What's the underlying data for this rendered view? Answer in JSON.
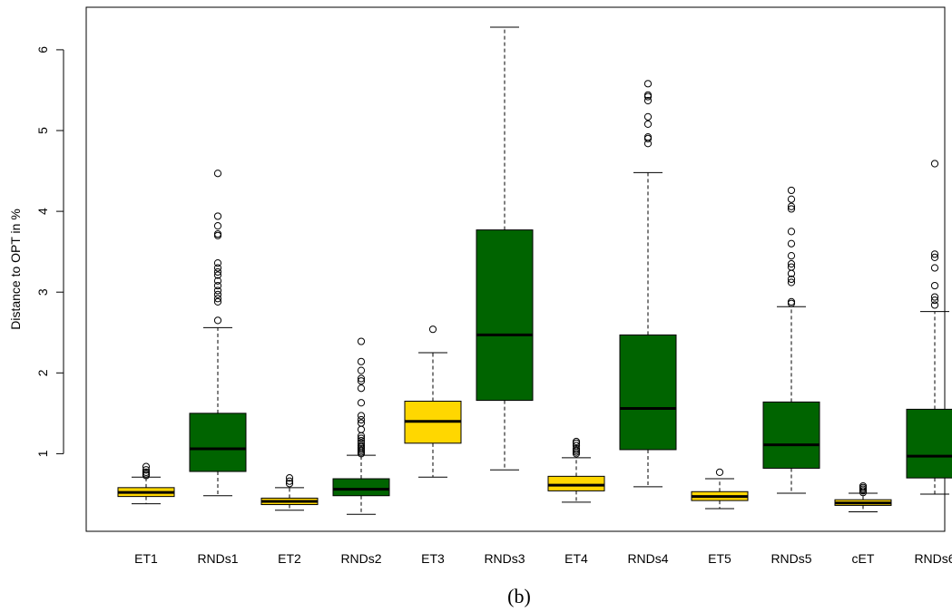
{
  "chart_data": {
    "type": "boxplot",
    "ylabel": "Distance to OPT in %",
    "caption": "(b)",
    "ylim": [
      0.15,
      6.5
    ],
    "yticks": [
      1,
      2,
      3,
      4,
      5,
      6
    ],
    "grid": false,
    "legend": "none",
    "colors": {
      "ET": "#FFD700",
      "RND": "#006400",
      "median": "#000000",
      "outline": "#000000"
    },
    "categories": [
      "ET1",
      "RNDs1",
      "ET2",
      "RNDs2",
      "ET3",
      "RNDs3",
      "ET4",
      "RNDs4",
      "ET5",
      "RNDs5",
      "cET",
      "RNDs6"
    ],
    "boxes": [
      {
        "label": "ET1",
        "group": "ET",
        "whisker_low": 0.38,
        "q1": 0.47,
        "median": 0.52,
        "q3": 0.58,
        "whisker_high": 0.71,
        "outliers": [
          0.73,
          0.75,
          0.77,
          0.8,
          0.84
        ]
      },
      {
        "label": "RNDs1",
        "group": "RND",
        "whisker_low": 0.48,
        "q1": 0.78,
        "median": 1.06,
        "q3": 1.5,
        "whisker_high": 2.56,
        "outliers": [
          2.65,
          2.88,
          2.92,
          2.97,
          3.02,
          3.08,
          3.14,
          3.21,
          3.25,
          3.3,
          3.36,
          3.7,
          3.72,
          3.82,
          3.94,
          4.47
        ]
      },
      {
        "label": "ET2",
        "group": "ET",
        "whisker_low": 0.3,
        "q1": 0.37,
        "median": 0.41,
        "q3": 0.45,
        "whisker_high": 0.58,
        "outliers": [
          0.63,
          0.66,
          0.7
        ]
      },
      {
        "label": "RNDs2",
        "group": "RND",
        "whisker_low": 0.25,
        "q1": 0.48,
        "median": 0.56,
        "q3": 0.69,
        "whisker_high": 0.98,
        "outliers": [
          1.0,
          1.02,
          1.04,
          1.06,
          1.08,
          1.1,
          1.13,
          1.16,
          1.19,
          1.22,
          1.3,
          1.38,
          1.42,
          1.47,
          1.63,
          1.81,
          1.9,
          1.93,
          2.03,
          2.14,
          2.39
        ]
      },
      {
        "label": "ET3",
        "group": "ET",
        "whisker_low": 0.71,
        "q1": 1.13,
        "median": 1.4,
        "q3": 1.65,
        "whisker_high": 2.25,
        "outliers": [
          2.54
        ]
      },
      {
        "label": "RNDs3",
        "group": "RND",
        "whisker_low": 0.8,
        "q1": 1.66,
        "median": 2.47,
        "q3": 3.77,
        "whisker_high": 6.28,
        "outliers": []
      },
      {
        "label": "ET4",
        "group": "ET",
        "whisker_low": 0.4,
        "q1": 0.54,
        "median": 0.61,
        "q3": 0.72,
        "whisker_high": 0.95,
        "outliers": [
          1.0,
          1.02,
          1.04,
          1.06,
          1.1,
          1.13,
          1.15
        ]
      },
      {
        "label": "RNDs4",
        "group": "RND",
        "whisker_low": 0.59,
        "q1": 1.05,
        "median": 1.56,
        "q3": 2.47,
        "whisker_high": 4.48,
        "outliers": [
          4.84,
          4.9,
          4.92,
          5.08,
          5.17,
          5.37,
          5.42,
          5.44,
          5.58
        ]
      },
      {
        "label": "ET5",
        "group": "ET",
        "whisker_low": 0.32,
        "q1": 0.42,
        "median": 0.47,
        "q3": 0.53,
        "whisker_high": 0.69,
        "outliers": [
          0.77
        ]
      },
      {
        "label": "RNDs5",
        "group": "RND",
        "whisker_low": 0.51,
        "q1": 0.82,
        "median": 1.11,
        "q3": 1.64,
        "whisker_high": 2.82,
        "outliers": [
          2.86,
          2.88,
          3.12,
          3.16,
          3.23,
          3.31,
          3.35,
          3.45,
          3.6,
          3.75,
          4.03,
          4.06,
          4.15,
          4.26
        ]
      },
      {
        "label": "cET",
        "group": "ET",
        "whisker_low": 0.28,
        "q1": 0.36,
        "median": 0.39,
        "q3": 0.43,
        "whisker_high": 0.51,
        "outliers": [
          0.52,
          0.54,
          0.56,
          0.58,
          0.6
        ]
      },
      {
        "label": "RNDs6",
        "group": "RND",
        "whisker_low": 0.5,
        "q1": 0.7,
        "median": 0.97,
        "q3": 1.55,
        "whisker_high": 2.76,
        "outliers": [
          2.84,
          2.9,
          2.94,
          3.08,
          3.3,
          3.43,
          3.47,
          4.59
        ]
      }
    ]
  }
}
